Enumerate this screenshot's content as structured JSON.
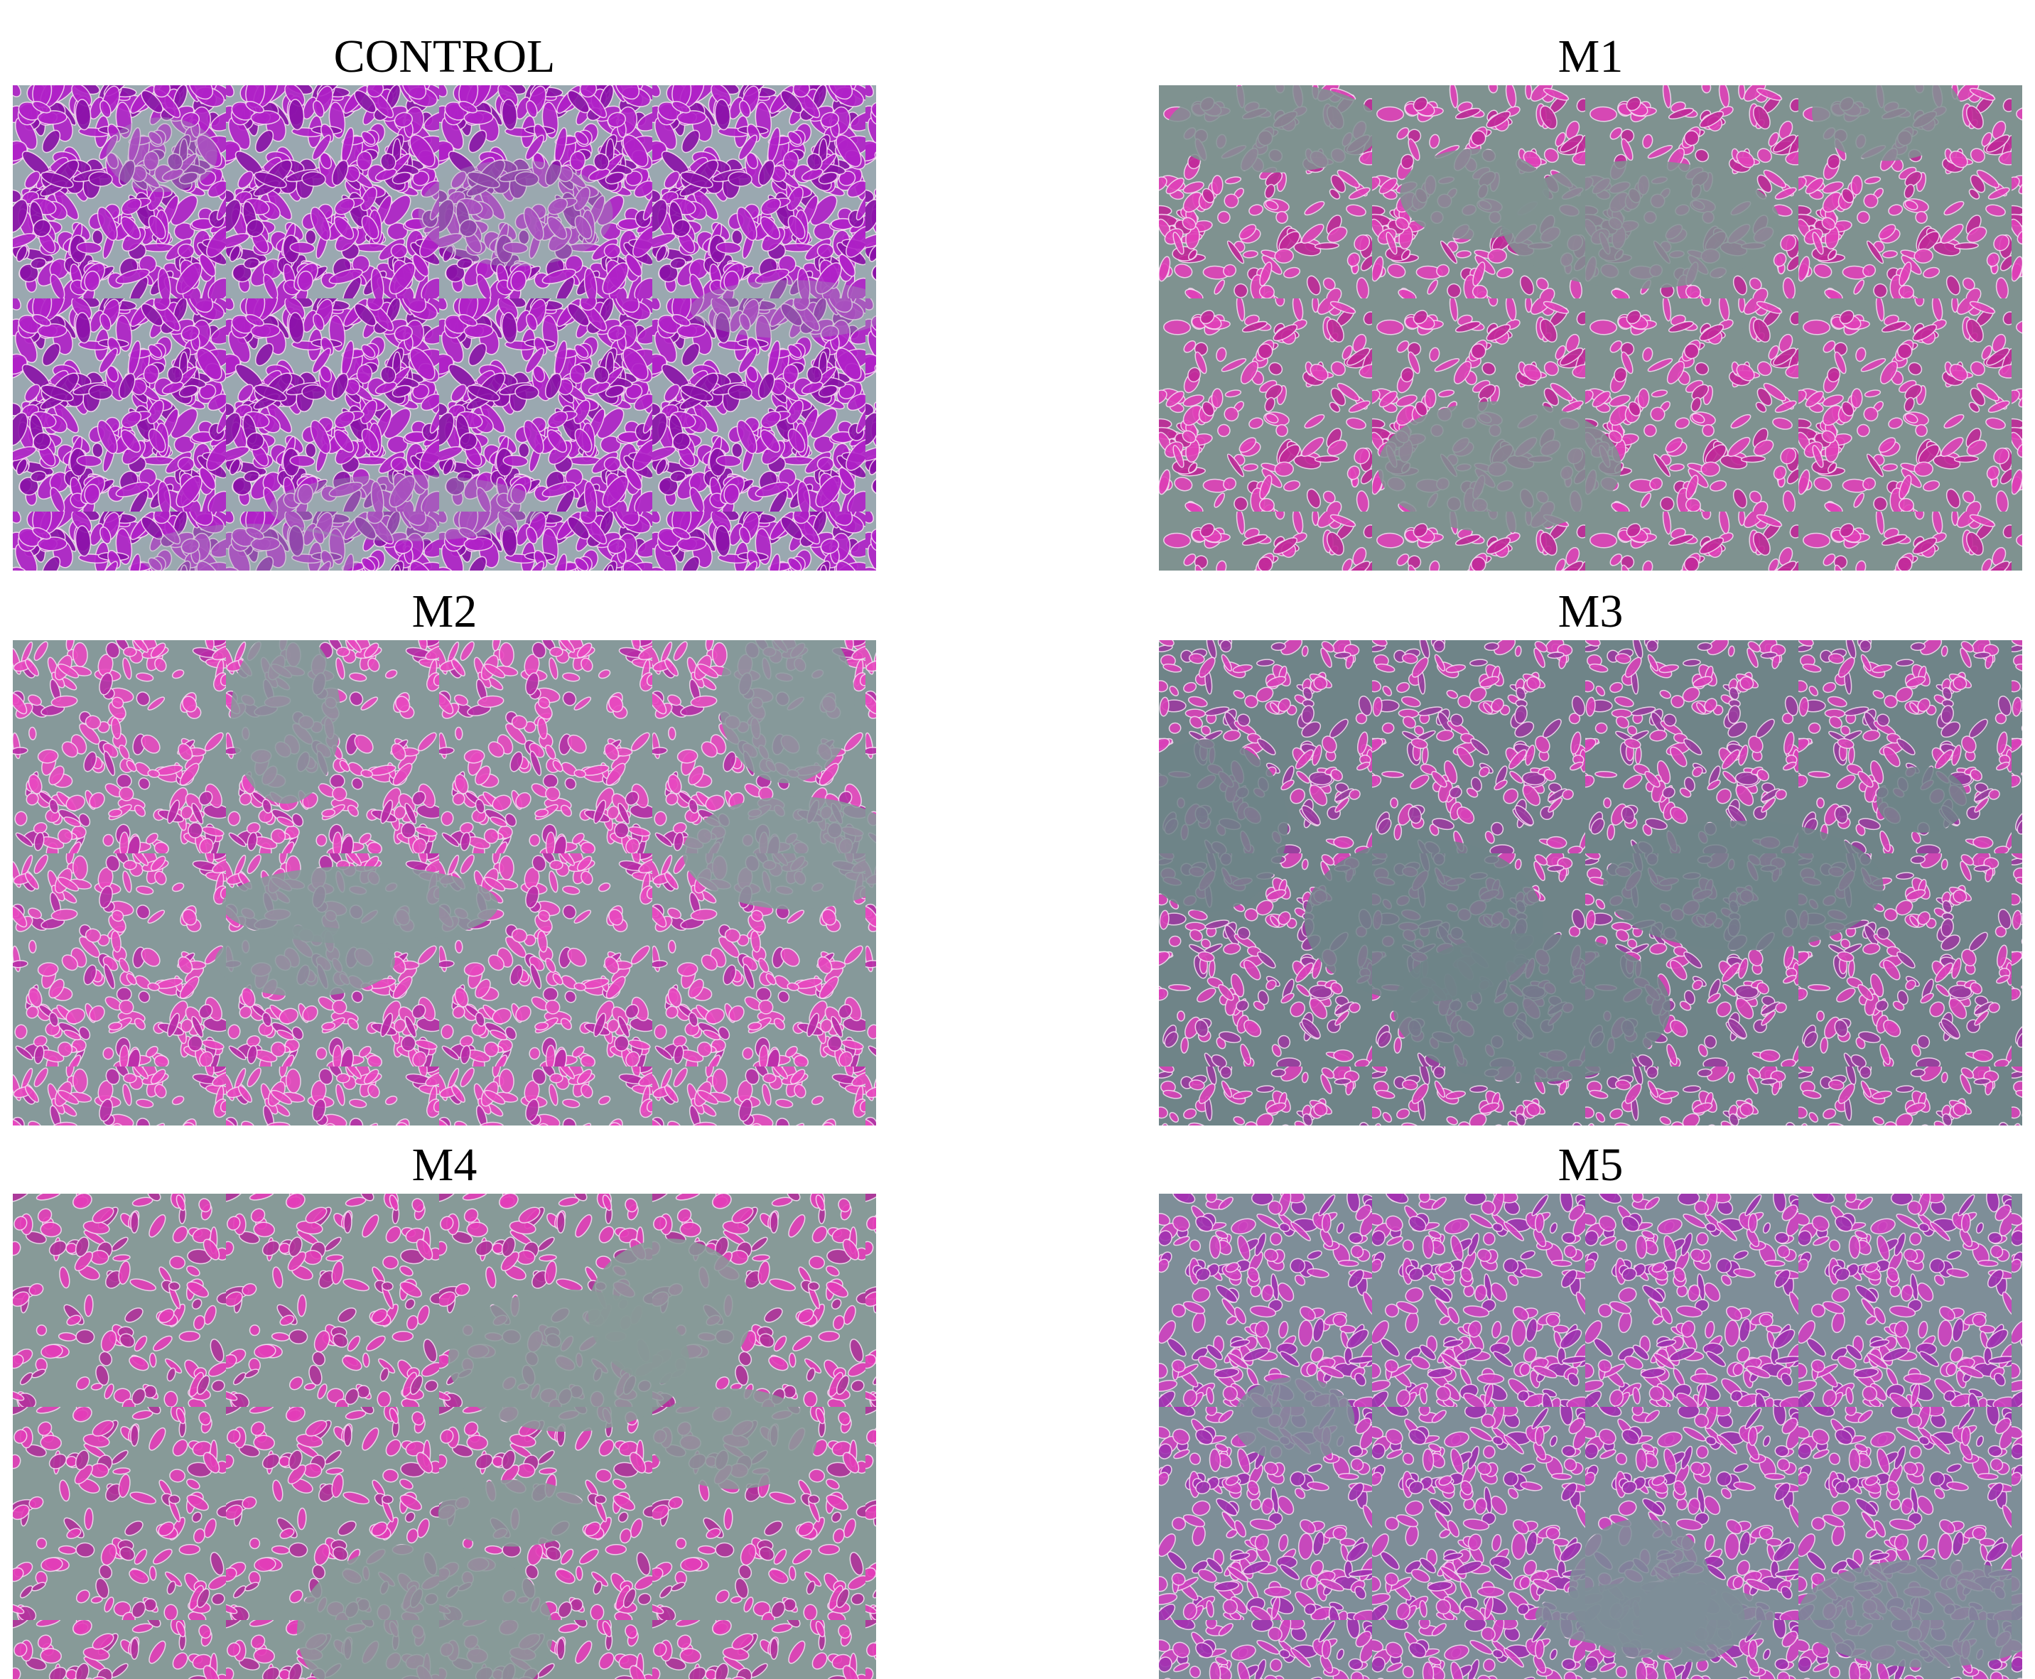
{
  "panels": [
    {
      "label": "CONTROL"
    },
    {
      "label": "M1"
    },
    {
      "label": "M2"
    },
    {
      "label": "M3"
    },
    {
      "label": "M4"
    },
    {
      "label": "M5"
    }
  ]
}
